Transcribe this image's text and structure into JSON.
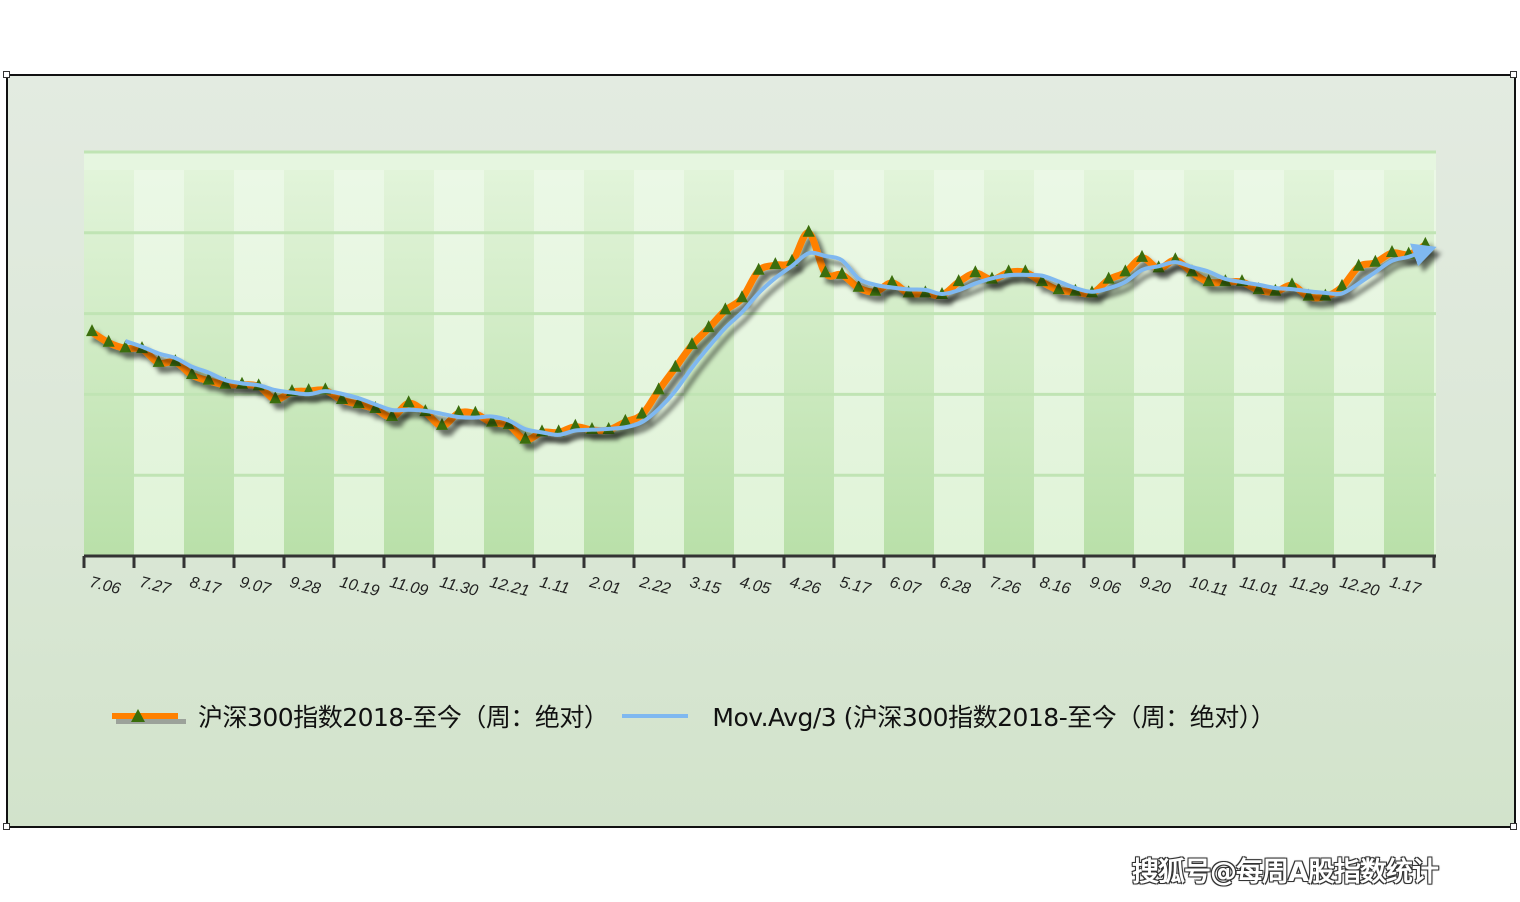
{
  "chart_data": {
    "type": "line",
    "title": "",
    "xlabel": "",
    "ylabel": "",
    "y_axis_labels_shown": false,
    "ylim": [
      0,
      5
    ],
    "grid": {
      "horizontal": true,
      "vertical_bands": true
    },
    "x_tick_labels": [
      "7.06",
      "7.27",
      "8.17",
      "9.07",
      "9.28",
      "10.19",
      "11.09",
      "11.30",
      "12.21",
      "1.11",
      "2.01",
      "2.22",
      "3.15",
      "4.05",
      "4.26",
      "5.17",
      "6.07",
      "6.28",
      "7.26",
      "8.16",
      "9.06",
      "9.20",
      "10.11",
      "11.01",
      "11.29",
      "12.20",
      "1.17"
    ],
    "series": [
      {
        "name": "沪深300指数2018-至今（周：绝对）",
        "color": "#ff8000",
        "marker": "triangle",
        "marker_color": "#3a6e0a",
        "values": [
          2.77,
          2.64,
          2.57,
          2.56,
          2.39,
          2.4,
          2.24,
          2.17,
          2.12,
          2.12,
          2.1,
          1.94,
          2.03,
          2.04,
          2.05,
          1.93,
          1.88,
          1.82,
          1.72,
          1.89,
          1.78,
          1.61,
          1.77,
          1.76,
          1.65,
          1.62,
          1.44,
          1.53,
          1.53,
          1.6,
          1.56,
          1.56,
          1.66,
          1.75,
          2.05,
          2.33,
          2.61,
          2.82,
          3.04,
          3.19,
          3.53,
          3.6,
          3.64,
          4.0,
          3.5,
          3.48,
          3.32,
          3.27,
          3.38,
          3.25,
          3.25,
          3.23,
          3.39,
          3.5,
          3.42,
          3.51,
          3.51,
          3.39,
          3.29,
          3.27,
          3.25,
          3.42,
          3.51,
          3.69,
          3.56,
          3.66,
          3.51,
          3.39,
          3.39,
          3.39,
          3.29,
          3.27,
          3.35,
          3.21,
          3.21,
          3.33,
          3.58,
          3.63,
          3.75,
          3.73,
          3.85
        ]
      },
      {
        "name": "Mov.Avg/3 (沪深300指数2018-至今（周：绝对））",
        "color": "#7fb8f0",
        "moving_average_of": 0,
        "period": 3
      }
    ],
    "legend_position": "bottom"
  },
  "legend": {
    "series1_label": "沪深300指数2018-至今（周：绝对）",
    "series2_label": "Mov.Avg/3 (沪深300指数2018-至今（周：绝对））"
  },
  "watermark": "搜狐号@每周A股指数统计",
  "colors": {
    "frame_bg": "#dce8d8",
    "band_dark": "#c4e6b6",
    "band_light": "#e8f7e2",
    "gridline": "#c0e4b4",
    "axis": "#333333"
  }
}
